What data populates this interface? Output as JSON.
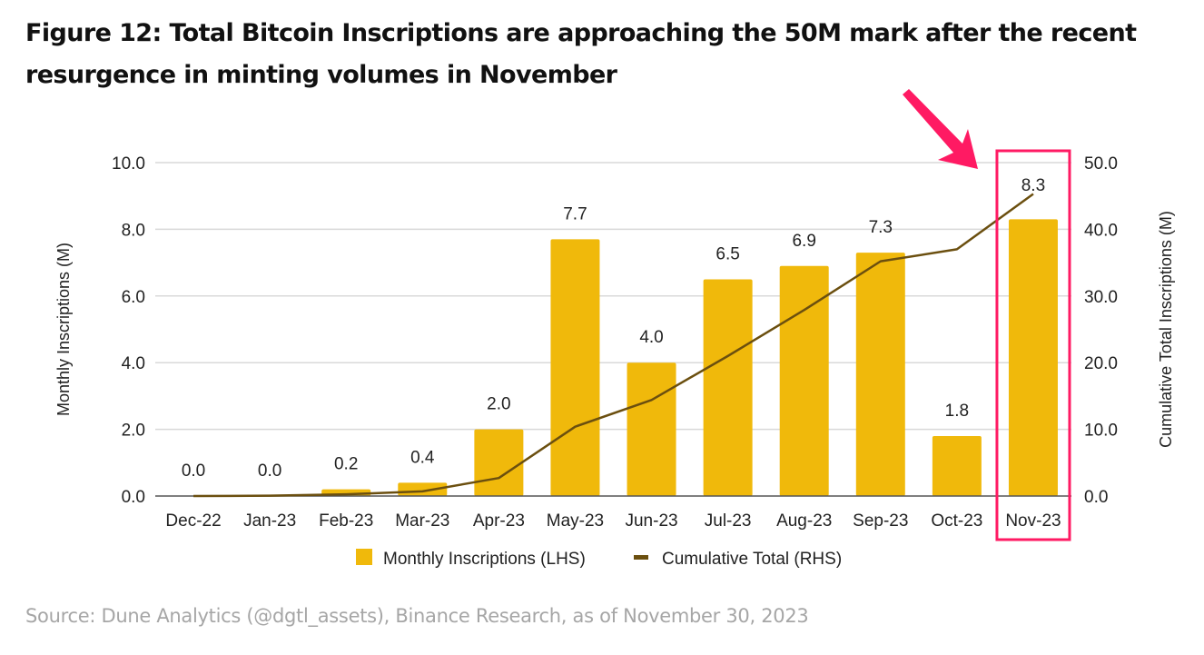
{
  "figure": {
    "title": "Figure 12: Total Bitcoin Inscriptions are approaching the 50M mark after the recent resurgence in minting volumes in November",
    "source": "Source: Dune Analytics (@dgtl_assets), Binance Research, as of November 30, 2023"
  },
  "colors": {
    "bar": "#F0B90B",
    "line": "#6B4F0F",
    "highlight": "#FF1A63",
    "grid": "#D9D9D9",
    "axis": "#555555"
  },
  "chart_data": {
    "type": "bar",
    "title": "Figure 12: Total Bitcoin Inscriptions are approaching the 50M mark after the recent resurgence in minting volumes in November",
    "categories": [
      "Dec-22",
      "Jan-23",
      "Feb-23",
      "Mar-23",
      "Apr-23",
      "May-23",
      "Jun-23",
      "Jul-23",
      "Aug-23",
      "Sep-23",
      "Oct-23",
      "Nov-23"
    ],
    "series": [
      {
        "name": "Monthly Inscriptions (LHS)",
        "type": "bar",
        "axis": "left",
        "values": [
          0.0,
          0.0,
          0.2,
          0.4,
          2.0,
          7.7,
          4.0,
          6.5,
          6.9,
          7.3,
          1.8,
          8.3
        ],
        "labels": [
          "0.0",
          "0.0",
          "0.2",
          "0.4",
          "2.0",
          "7.7",
          "4.0",
          "6.5",
          "6.9",
          "7.3",
          "1.8",
          "8.3"
        ]
      },
      {
        "name": "Cumulative Total (RHS)",
        "type": "line",
        "axis": "right",
        "values": [
          0.0,
          0.05,
          0.25,
          0.7,
          2.7,
          10.4,
          14.4,
          21.0,
          27.9,
          35.2,
          37.0,
          45.3
        ]
      }
    ],
    "ylabel": "Monthly Inscriptions (M)",
    "ylabel_right": "Cumulative Total Inscriptions (M)",
    "ylim": [
      0,
      10
    ],
    "ylim_right": [
      0,
      50
    ],
    "yticks": [
      "0.0",
      "2.0",
      "4.0",
      "6.0",
      "8.0",
      "10.0"
    ],
    "yticks_right": [
      "0.0",
      "10.0",
      "20.0",
      "30.0",
      "40.0",
      "50.0"
    ],
    "grid": true,
    "legend_position": "bottom",
    "annotation": {
      "type": "highlight-box-with-arrow",
      "category": "Nov-23"
    }
  }
}
